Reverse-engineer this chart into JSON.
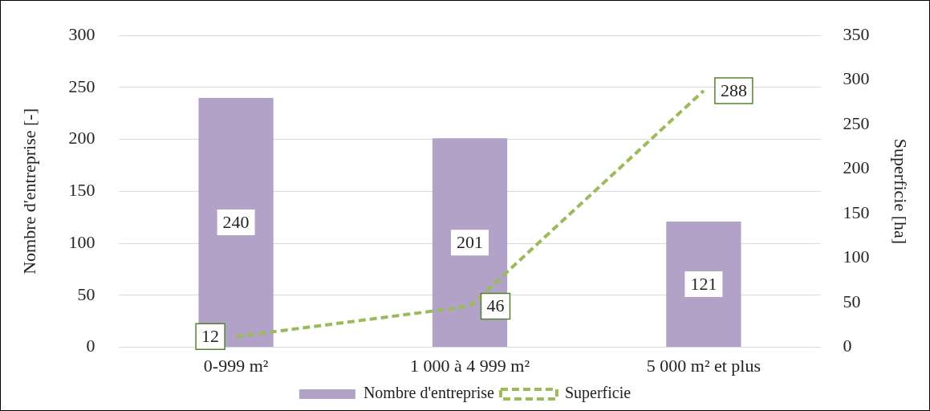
{
  "chart_data": {
    "type": "bar",
    "categories": [
      "0-999 m²",
      "1 000 à 4 999 m²",
      "5 000 m² et plus"
    ],
    "series": [
      {
        "name": "Nombre d'entreprise",
        "color": "#b3a2c7",
        "values": [
          240,
          201,
          121
        ]
      },
      {
        "name": "Superficie",
        "type": "line",
        "axis": "y2",
        "color": "#9bbb59",
        "line_style": "dashed",
        "values": [
          12,
          46,
          288
        ]
      }
    ],
    "ylabel": "Nombre d'entreprise [-]",
    "y2label": "Superficie [ha]",
    "ylim": [
      0,
      300
    ],
    "yticks": [
      0,
      50,
      100,
      150,
      200,
      250,
      300
    ],
    "y2lim": [
      0,
      350
    ],
    "y2ticks": [
      0,
      50,
      100,
      150,
      200,
      250,
      300,
      350
    ],
    "grid": "y",
    "legend": "bottom",
    "data_labels": true
  }
}
